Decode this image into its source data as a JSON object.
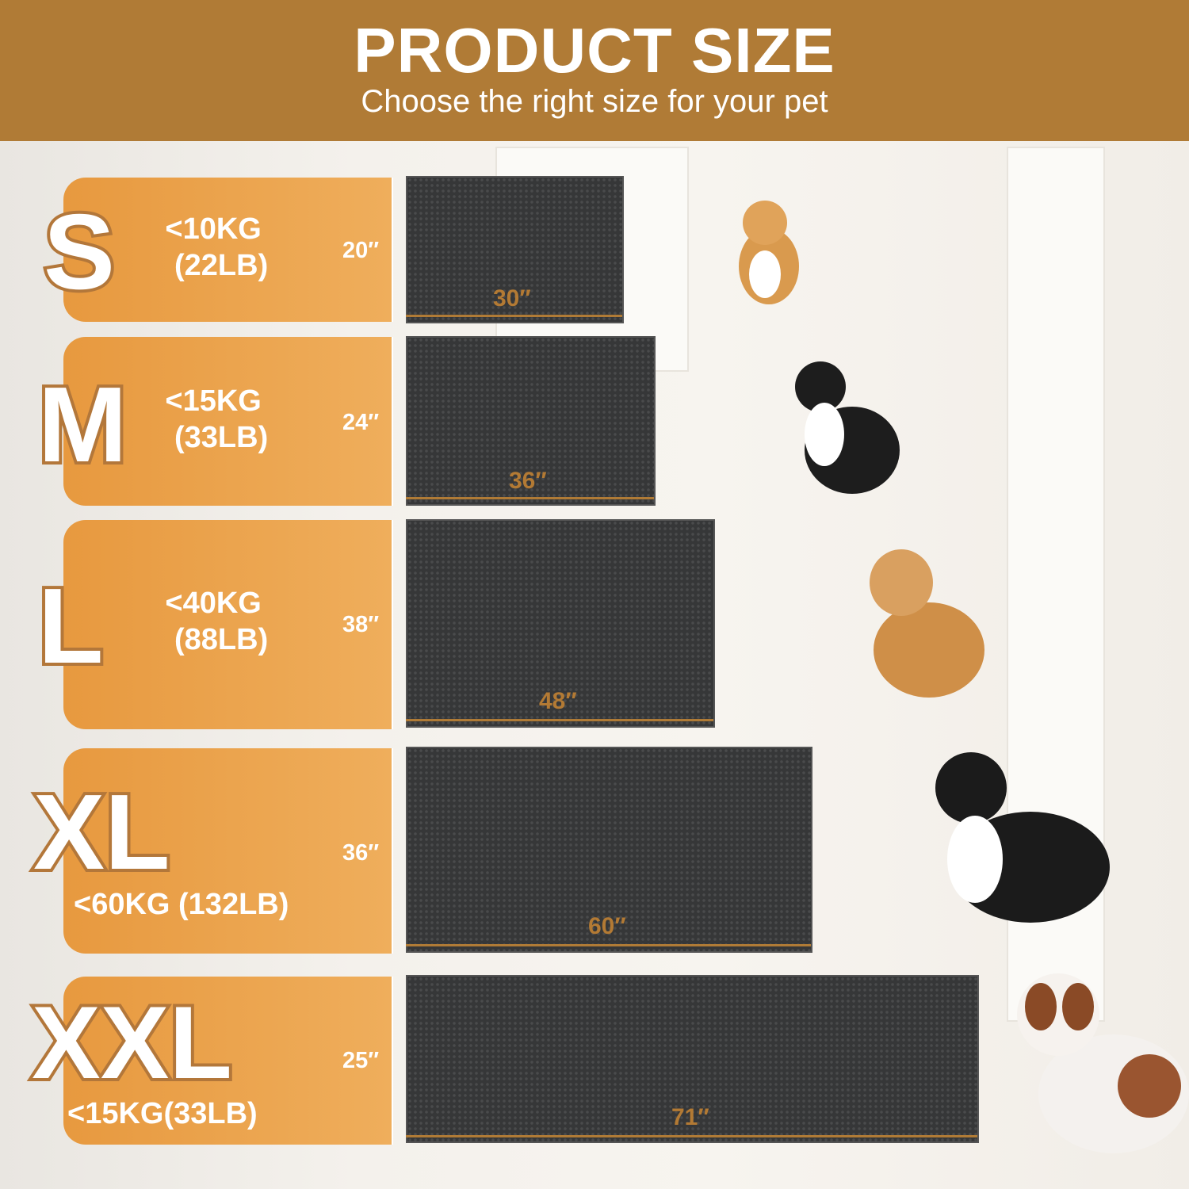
{
  "header": {
    "title": "PRODUCT SIZE",
    "subtitle": "Choose the right size for your pet"
  },
  "colors": {
    "brand": "#b07b36",
    "panel": "#e9a04a",
    "mat": "#363738"
  },
  "sizes": [
    {
      "letter": "S",
      "weight_kg": "<10KG",
      "weight_lb": "(22LB)",
      "height": "20″",
      "width": "30″",
      "dog": "corgi-image"
    },
    {
      "letter": "M",
      "weight_kg": "<15KG",
      "weight_lb": "(33LB)",
      "height": "24″",
      "width": "36″",
      "dog": "border-collie-image"
    },
    {
      "letter": "L",
      "weight_kg": "<40KG",
      "weight_lb": "(88LB)",
      "height": "38″",
      "width": "48″",
      "dog": "golden-retriever-image"
    },
    {
      "letter": "XL",
      "weight": "<60KG (132LB)",
      "height": "36″",
      "width": "60″",
      "dog": "bernese-mountain-dog-image"
    },
    {
      "letter": "XXL",
      "weight": "<15KG(33LB)",
      "height": "25″",
      "width": "71″",
      "dog": "saint-bernard-image"
    }
  ]
}
